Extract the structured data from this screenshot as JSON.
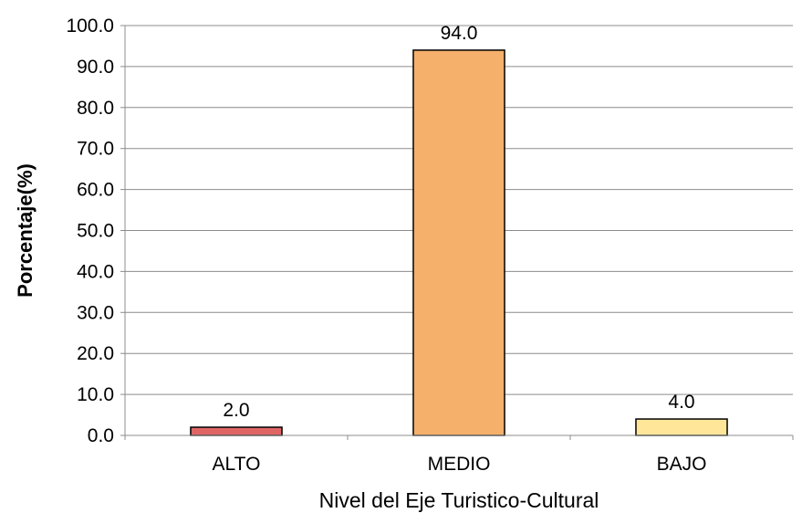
{
  "chart_data": {
    "type": "bar",
    "categories": [
      "ALTO",
      "MEDIO",
      "BAJO"
    ],
    "values": [
      2.0,
      94.0,
      4.0
    ],
    "value_labels": [
      "2.0",
      "94.0",
      "4.0"
    ],
    "bar_colors": [
      "#e06666",
      "#f5b06b",
      "#ffe699"
    ],
    "xlabel": "Nivel del Eje Turistico-Cultural",
    "ylabel": "Porcentaje(%)",
    "ylim": [
      0,
      100
    ],
    "yticks": [
      "0.0",
      "10.0",
      "20.0",
      "30.0",
      "40.0",
      "50.0",
      "60.0",
      "70.0",
      "80.0",
      "90.0",
      "100.0"
    ],
    "grid": true,
    "legend": "none"
  }
}
